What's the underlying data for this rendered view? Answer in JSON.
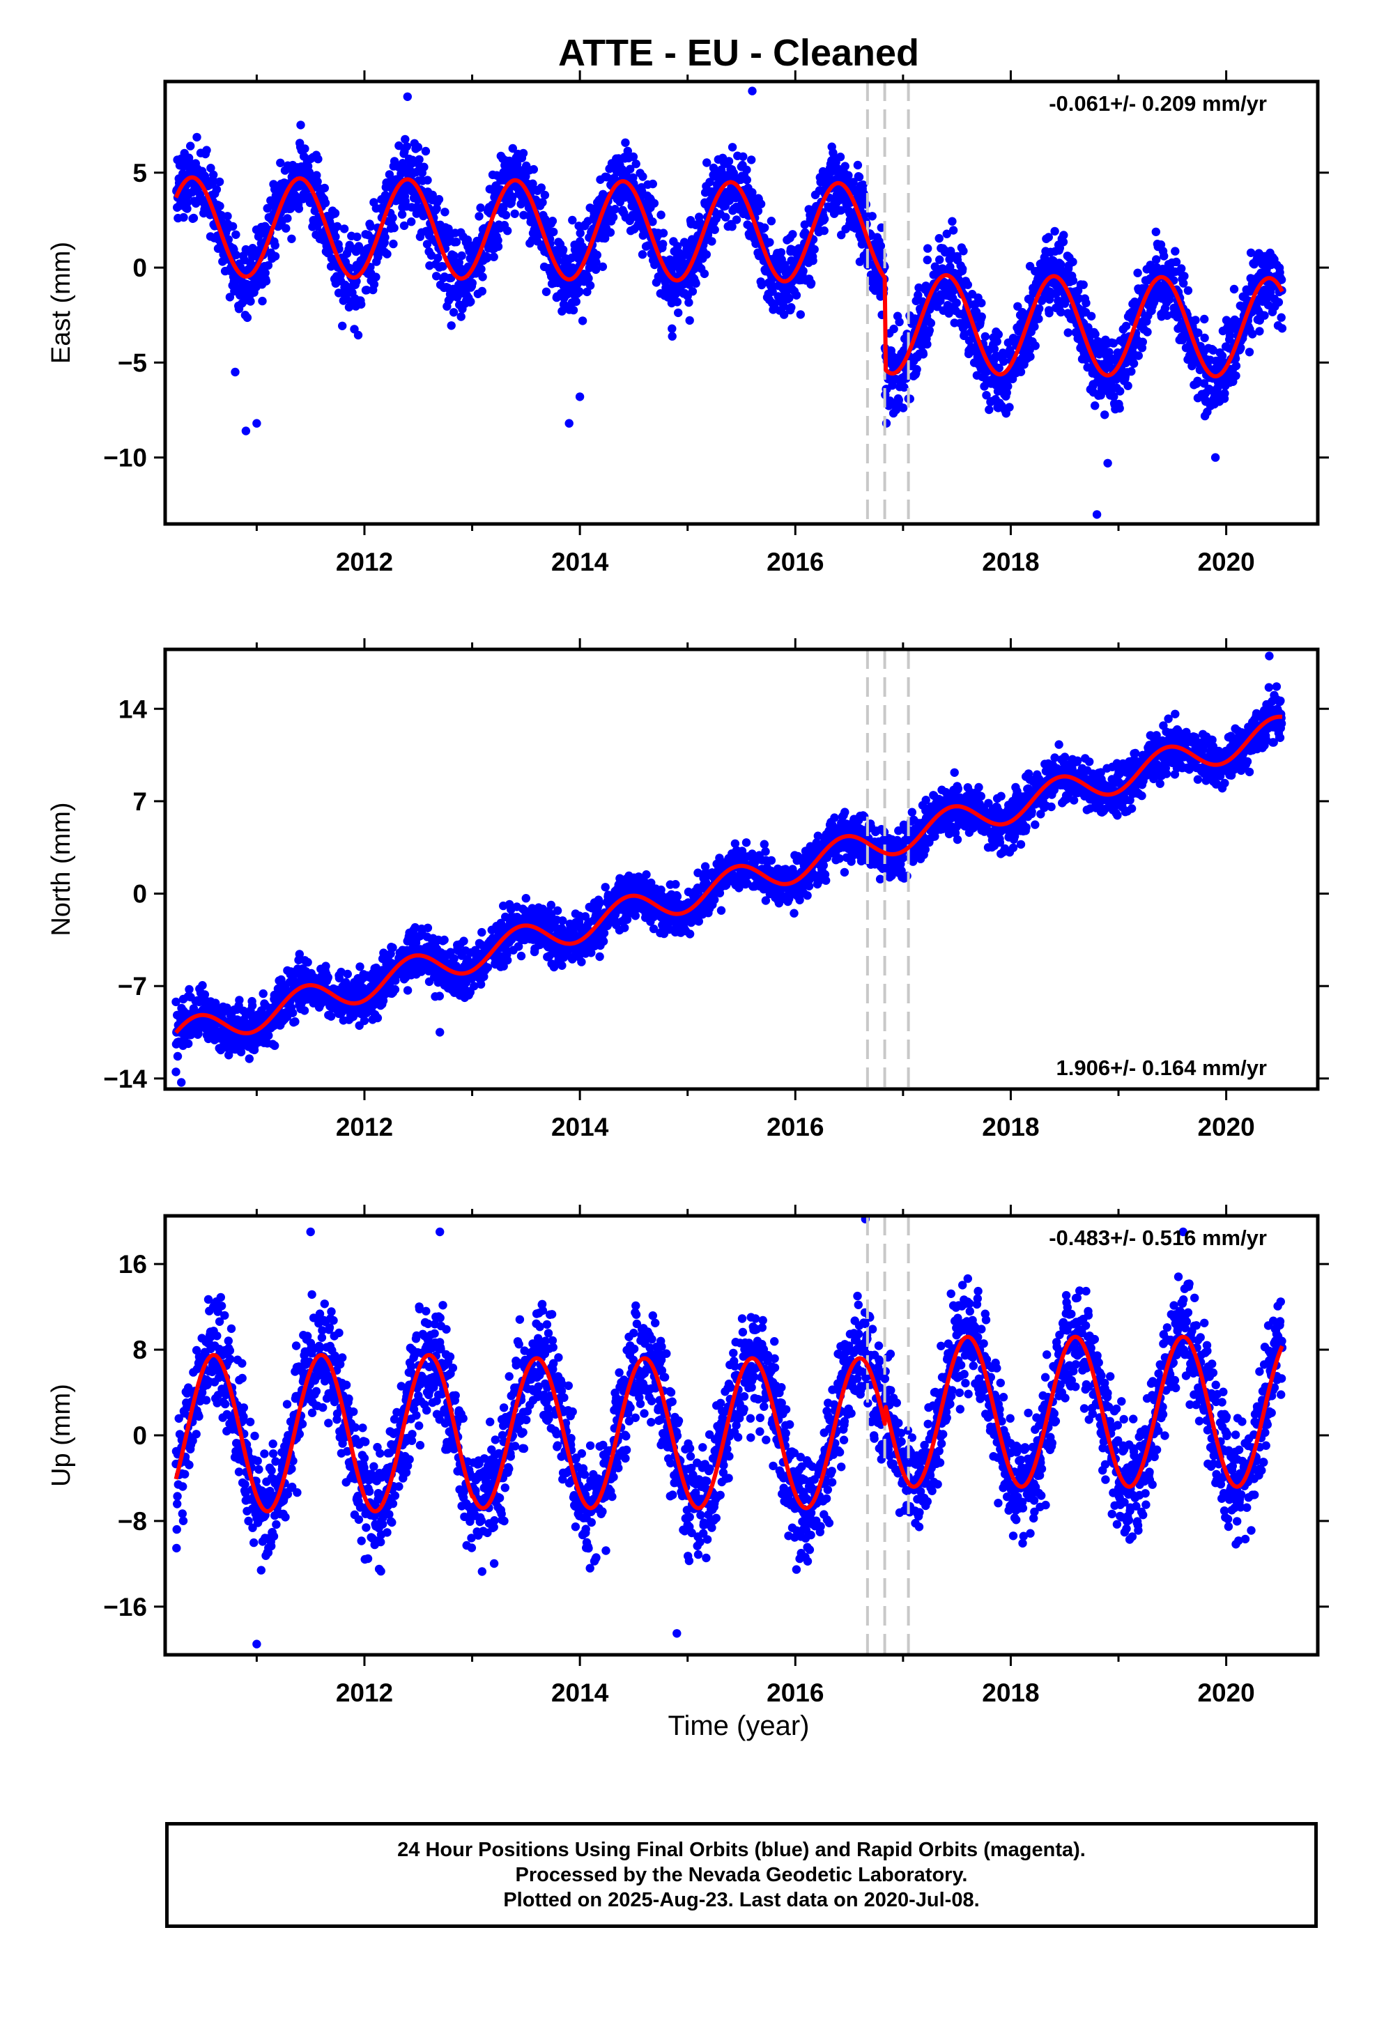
{
  "title": "ATTE  - EU - Cleaned",
  "xlabel": "Time (year)",
  "colors": {
    "points": "#0000ff",
    "fit": "#ff0000",
    "offset_lines": "#c8c8c8",
    "frame": "#000000"
  },
  "footer": {
    "line1": "24 Hour Positions Using Final Orbits (blue) and Rapid Orbits (magenta).",
    "line2": "Processed by the Nevada Geodetic Laboratory.",
    "line3": "Plotted on 2025-Aug-23. Last data on 2020-Jul-08."
  },
  "chart_data": [
    {
      "type": "scatter",
      "component": "east",
      "ylabel": "East (mm)",
      "rate_label": "-0.061+/- 0.209 mm/yr",
      "rate_position": "top-right",
      "xlim": [
        2010.15,
        2020.85
      ],
      "ylim": [
        -13.5,
        9.8
      ],
      "xticks": [
        2012,
        2014,
        2016,
        2018,
        2020
      ],
      "yticks": [
        5,
        0,
        -5,
        -10
      ],
      "data_span": [
        2010.25,
        2020.52
      ],
      "offset_epochs": [
        2016.67,
        2016.83,
        2017.05
      ],
      "fit": {
        "pre_offset_mean": 2.0,
        "post_offset_mean": -2.8,
        "seasonal_amplitude": 2.6,
        "seasonal_peak": 2016.4
      },
      "outliers": [
        [
          2010.8,
          -5.5
        ],
        [
          2010.9,
          -8.6
        ],
        [
          2011.0,
          -8.2
        ],
        [
          2013.9,
          -8.2
        ],
        [
          2014.0,
          -6.8
        ],
        [
          2015.6,
          9.3
        ],
        [
          2018.8,
          -13.0
        ],
        [
          2019.9,
          -10.0
        ],
        [
          2018.9,
          -10.3
        ],
        [
          2012.4,
          9.0
        ]
      ]
    },
    {
      "type": "scatter",
      "component": "north",
      "ylabel": "North (mm)",
      "rate_label": "1.906+/- 0.164 mm/yr",
      "rate_position": "bottom-right",
      "xlim": [
        2010.15,
        2020.85
      ],
      "ylim": [
        -14.8,
        18.5
      ],
      "xticks": [
        2012,
        2014,
        2016,
        2018,
        2020
      ],
      "yticks": [
        14,
        7,
        0,
        -7,
        -14
      ],
      "data_span": [
        2010.25,
        2020.52
      ],
      "offset_epochs": [
        2016.67,
        2016.83,
        2017.05
      ],
      "fit": {
        "start_value": -10.9,
        "end_value": 12.3,
        "seasonal_amplitude": 1.2,
        "seasonal_peak": 2016.45
      },
      "outliers": [
        [
          2010.25,
          -13.5
        ],
        [
          2010.3,
          -14.3
        ],
        [
          2020.4,
          18.0
        ],
        [
          2012.7,
          -10.5
        ]
      ]
    },
    {
      "type": "scatter",
      "component": "up",
      "ylabel": "Up (mm)",
      "rate_label": "-0.483+/- 0.516 mm/yr",
      "rate_position": "top-right",
      "xlim": [
        2010.15,
        2020.85
      ],
      "ylim": [
        -20.5,
        20.5
      ],
      "xticks": [
        2012,
        2014,
        2016,
        2018,
        2020
      ],
      "yticks": [
        16,
        8,
        0,
        -8,
        -16
      ],
      "data_span": [
        2010.25,
        2020.52
      ],
      "offset_epochs": [
        2016.67,
        2016.83,
        2017.05
      ],
      "fit": {
        "mean_before": 1.5,
        "mean_after": 3.5,
        "seasonal_amplitude": 7.0,
        "seasonal_peak": 2016.6
      },
      "outliers": [
        [
          2011.0,
          -19.5
        ],
        [
          2014.9,
          -18.5
        ],
        [
          2016.65,
          20.2
        ],
        [
          2011.5,
          19.0
        ],
        [
          2012.7,
          19.0
        ],
        [
          2019.6,
          19.0
        ]
      ]
    }
  ]
}
